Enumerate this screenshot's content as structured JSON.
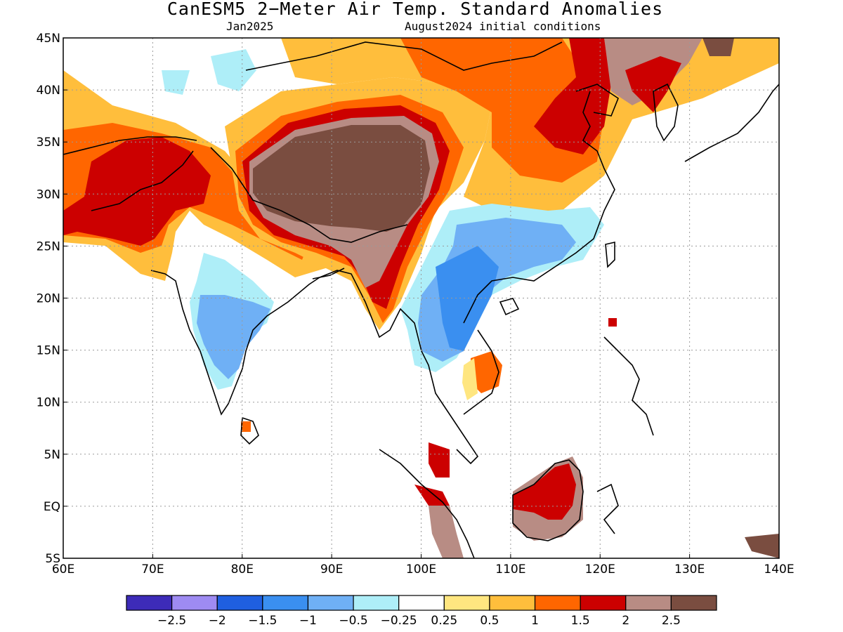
{
  "title": "CanESM5 2−Meter Air Temp. Standard Anomalies",
  "subtitle_left": "Jan2025",
  "subtitle_right": "August2024 initial conditions",
  "map": {
    "lon_range": [
      60,
      140
    ],
    "lat_range": [
      -5,
      45
    ],
    "lon_ticks": [
      {
        "value": 60,
        "label": "60E"
      },
      {
        "value": 70,
        "label": "70E"
      },
      {
        "value": 80,
        "label": "80E"
      },
      {
        "value": 90,
        "label": "90E"
      },
      {
        "value": 100,
        "label": "100E"
      },
      {
        "value": 110,
        "label": "110E"
      },
      {
        "value": 120,
        "label": "120E"
      },
      {
        "value": 130,
        "label": "130E"
      },
      {
        "value": 140,
        "label": "140E"
      }
    ],
    "lat_ticks": [
      {
        "value": 45,
        "label": "45N"
      },
      {
        "value": 40,
        "label": "40N"
      },
      {
        "value": 35,
        "label": "35N"
      },
      {
        "value": 30,
        "label": "30N"
      },
      {
        "value": 25,
        "label": "25N"
      },
      {
        "value": 20,
        "label": "20N"
      },
      {
        "value": 15,
        "label": "15N"
      },
      {
        "value": 10,
        "label": "10N"
      },
      {
        "value": 5,
        "label": "5N"
      },
      {
        "value": 0,
        "label": "EQ"
      },
      {
        "value": -5,
        "label": "5S"
      }
    ],
    "colors": {
      "below_m25": "#3d2bb8",
      "m25_m2": "#9e8bf2",
      "m2_m15": "#1f5fe0",
      "m15_m1": "#3a8ff0",
      "m1_m05": "#6fb0f5",
      "m05_m025": "#aeeef8",
      "neutral": "#ffffff",
      "p025_p05": "#ffe680",
      "p05_p1": "#ffbe3c",
      "p1_p15": "#ff6600",
      "p15_p2": "#cc0000",
      "p2_p25": "#b88c84",
      "above_p25": "#7a4d40"
    }
  },
  "colorbar": {
    "colors": [
      "#3d2bb8",
      "#9e8bf2",
      "#1f5fe0",
      "#3a8ff0",
      "#6fb0f5",
      "#aeeef8",
      "#ffffff",
      "#ffe680",
      "#ffbe3c",
      "#ff6600",
      "#cc0000",
      "#b88c84",
      "#7a4d40"
    ],
    "labels": [
      "−2.5",
      "−2",
      "−1.5",
      "−1",
      "−0.5",
      "−0.25",
      "0.25",
      "0.5",
      "1",
      "1.5",
      "2",
      "2.5"
    ]
  }
}
